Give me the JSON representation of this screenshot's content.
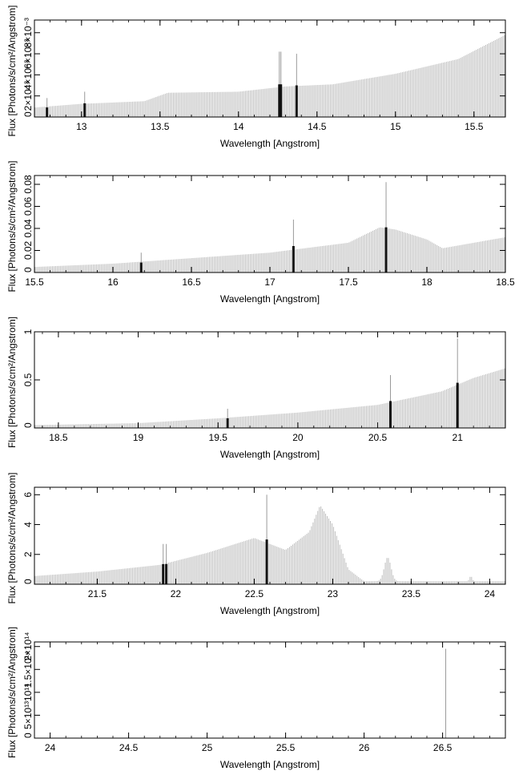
{
  "chart_data": [
    {
      "type": "bar",
      "xlabel": "Wavelength [Angstrom]",
      "ylabel": "Flux [Photons/s/cm²/Angstrom]",
      "xlim": [
        12.7,
        15.7
      ],
      "ylim": [
        0,
        0.0092
      ],
      "xticks": [
        13,
        13.5,
        14,
        14.5,
        15,
        15.5
      ],
      "xtick_labels": [
        "13",
        "13.5",
        "14",
        "14.5",
        "15",
        "15.5"
      ],
      "yticks": [
        0,
        0.002,
        0.004,
        0.006,
        0.008
      ],
      "ytick_labels": [
        "0",
        "2×10⁻³",
        "4×10⁻³",
        "6×10⁻³",
        "8×10⁻³"
      ],
      "continuum": [
        [
          12.7,
          0.0009
        ],
        [
          13.0,
          0.00125
        ],
        [
          13.4,
          0.0015
        ],
        [
          13.55,
          0.0023
        ],
        [
          14.0,
          0.0024
        ],
        [
          14.3,
          0.0029
        ],
        [
          14.6,
          0.0031
        ],
        [
          15.0,
          0.0041
        ],
        [
          15.4,
          0.0055
        ],
        [
          15.7,
          0.0078
        ]
      ],
      "features": [],
      "lines": [
        {
          "x": 12.78,
          "y": 0.0009,
          "peak": 0.0018
        },
        {
          "x": 13.02,
          "y": 0.0013,
          "peak": 0.0024
        },
        {
          "x": 14.26,
          "y": 0.0031,
          "peak": 0.0062
        },
        {
          "x": 14.27,
          "y": 0.0031,
          "peak": 0.0062
        },
        {
          "x": 14.37,
          "y": 0.003,
          "peak": 0.006
        }
      ]
    },
    {
      "type": "bar",
      "xlabel": "Wavelength [Angstrom]",
      "ylabel": "Flux [Photons/s/cm²/Angstrom]",
      "xlim": [
        15.5,
        18.5
      ],
      "ylim": [
        0,
        0.088
      ],
      "xticks": [
        15.5,
        16,
        16.5,
        17,
        17.5,
        18,
        18.5
      ],
      "xtick_labels": [
        "15.5",
        "16",
        "16.5",
        "17",
        "17.5",
        "18",
        "18.5"
      ],
      "yticks": [
        0,
        0.02,
        0.04,
        0.06,
        0.08
      ],
      "ytick_labels": [
        "0",
        "0.02",
        "0.04",
        "0.06",
        "0.08"
      ],
      "continuum": [
        [
          15.5,
          0.005
        ],
        [
          16.0,
          0.008
        ],
        [
          16.5,
          0.013
        ],
        [
          17.0,
          0.018
        ],
        [
          17.5,
          0.027
        ],
        [
          17.7,
          0.041
        ],
        [
          17.8,
          0.039
        ],
        [
          18.0,
          0.03
        ],
        [
          18.1,
          0.022
        ],
        [
          18.5,
          0.032
        ]
      ],
      "features": [],
      "lines": [
        {
          "x": 16.18,
          "y": 0.009,
          "peak": 0.018
        },
        {
          "x": 17.15,
          "y": 0.024,
          "peak": 0.048
        },
        {
          "x": 17.74,
          "y": 0.041,
          "peak": 0.082
        }
      ]
    },
    {
      "type": "bar",
      "xlabel": "Wavelength [Angstrom]",
      "ylabel": "Flux [Photons/s/cm²/Angstrom]",
      "xlim": [
        18.35,
        21.3
      ],
      "ylim": [
        0,
        1.0
      ],
      "xticks": [
        18.5,
        19,
        19.5,
        20,
        20.5,
        21
      ],
      "xtick_labels": [
        "18.5",
        "19",
        "19.5",
        "20",
        "20.5",
        "21"
      ],
      "yticks": [
        0,
        0.5,
        1
      ],
      "ytick_labels": [
        "0",
        "0.5",
        "1"
      ],
      "continuum": [
        [
          18.35,
          0.03
        ],
        [
          19.0,
          0.05
        ],
        [
          19.5,
          0.1
        ],
        [
          20.0,
          0.16
        ],
        [
          20.5,
          0.24
        ],
        [
          20.9,
          0.38
        ],
        [
          21.1,
          0.52
        ],
        [
          21.3,
          0.62
        ]
      ],
      "features": [],
      "lines": [
        {
          "x": 19.56,
          "y": 0.1,
          "peak": 0.2
        },
        {
          "x": 20.58,
          "y": 0.28,
          "peak": 0.55
        },
        {
          "x": 21.0,
          "y": 0.47,
          "peak": 0.93
        }
      ]
    },
    {
      "type": "bar",
      "xlabel": "Wavelength [Angstrom]",
      "ylabel": "Flux [Photons/s/cm²/Angstrom]",
      "xlim": [
        21.1,
        24.1
      ],
      "ylim": [
        0,
        6.5
      ],
      "xticks": [
        21.5,
        22,
        22.5,
        23,
        23.5,
        24
      ],
      "xtick_labels": [
        "21.5",
        "22",
        "22.5",
        "23",
        "23.5",
        "24"
      ],
      "yticks": [
        0,
        2,
        4,
        6
      ],
      "ytick_labels": [
        "0",
        "2",
        "4",
        "6"
      ],
      "continuum": [
        [
          21.1,
          0.55
        ],
        [
          21.5,
          0.85
        ],
        [
          21.9,
          1.3
        ],
        [
          22.2,
          2.1
        ],
        [
          22.5,
          3.1
        ],
        [
          22.7,
          2.3
        ],
        [
          22.85,
          3.5
        ],
        [
          22.92,
          5.3
        ],
        [
          23.0,
          4.0
        ],
        [
          23.1,
          1.0
        ],
        [
          23.2,
          0.2
        ],
        [
          23.5,
          0.2
        ],
        [
          24.1,
          0.2
        ]
      ],
      "features": [
        {
          "x": 23.35,
          "peak": 1.6,
          "width": 0.03
        },
        {
          "x": 23.88,
          "peak": 0.35,
          "width": 0.012
        }
      ],
      "lines": [
        {
          "x": 21.92,
          "y": 1.35,
          "peak": 2.7
        },
        {
          "x": 21.94,
          "y": 1.35,
          "peak": 2.7
        },
        {
          "x": 22.58,
          "y": 3.0,
          "peak": 6.0
        }
      ]
    },
    {
      "type": "bar",
      "xlabel": "Wavelength [Angstrom]",
      "ylabel": "Flux [Photons/s/cm²/Angstrom]",
      "xlim": [
        23.9,
        26.9
      ],
      "ylim": [
        0,
        210000000000000.0
      ],
      "xticks": [
        24,
        24.5,
        25,
        25.5,
        26,
        26.5
      ],
      "xtick_labels": [
        "24",
        "24.5",
        "25",
        "25.5",
        "26",
        "26.5"
      ],
      "yticks": [
        0,
        50000000000000.0,
        100000000000000.0,
        150000000000000.0,
        200000000000000.0
      ],
      "ytick_labels": [
        "0",
        "5×10¹³",
        "10¹⁴",
        "1.5×10¹⁴",
        "2×10¹⁴"
      ],
      "continuum": [
        [
          23.9,
          0
        ],
        [
          26.9,
          0
        ]
      ],
      "features": [],
      "lines": [
        {
          "x": 26.52,
          "y": 0,
          "peak": 195000000000000.0
        }
      ]
    }
  ]
}
